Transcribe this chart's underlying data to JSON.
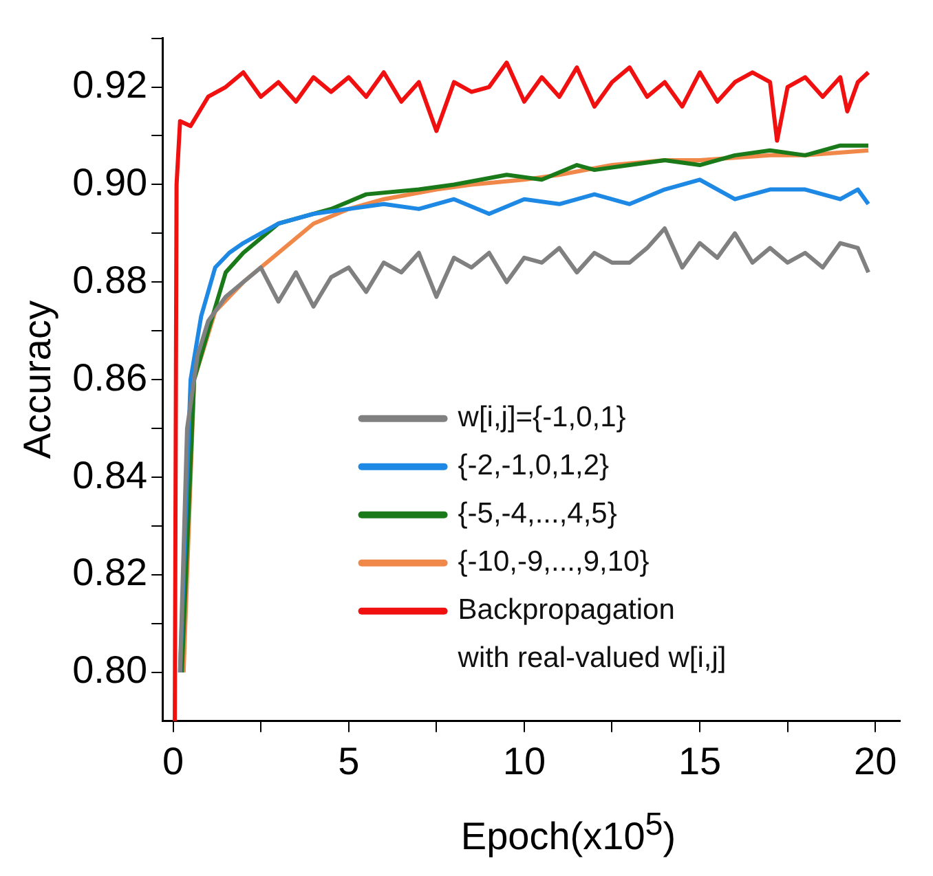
{
  "chart_data": {
    "type": "line",
    "xlabel": "Epoch(x10$^{5}$)",
    "ylabel": "Accuracy",
    "xlim": [
      -0.3,
      20.7
    ],
    "ylim": [
      0.79,
      0.93
    ],
    "xticks": [
      0,
      {
        "value": 2.5,
        "label": null
      },
      5,
      {
        "value": 7.5,
        "label": null
      },
      10,
      {
        "value": 12.5,
        "label": null
      },
      15,
      {
        "value": 17.5,
        "label": null
      },
      20
    ],
    "yticks": [
      {
        "value": 0.8,
        "label": "0.80"
      },
      {
        "value": 0.81,
        "label": null
      },
      0.82,
      {
        "value": 0.83,
        "label": null
      },
      0.84,
      {
        "value": 0.85,
        "label": null
      },
      0.86,
      {
        "value": 0.87,
        "label": null
      },
      0.88,
      {
        "value": 0.89,
        "label": null
      },
      {
        "value": 0.9,
        "label": "0.90"
      },
      {
        "value": 0.91,
        "label": null
      },
      0.92,
      {
        "value": 0.93,
        "label": null
      }
    ],
    "grid": false,
    "legend": "bottom right",
    "marker": "none",
    "line_style": "solid",
    "series": [
      {
        "name": "w[i,j]={-1,0,1}",
        "color": "#808080",
        "x": [
          0.2,
          0.4,
          0.7,
          1,
          1.5,
          2,
          2.5,
          3,
          3.5,
          4,
          4.5,
          5,
          5.5,
          6,
          6.5,
          7,
          7.5,
          8,
          8.5,
          9,
          9.5,
          10,
          10.5,
          11,
          11.5,
          12,
          12.5,
          13,
          13.5,
          14,
          14.5,
          15,
          15.5,
          16,
          16.5,
          17,
          17.5,
          18,
          18.5,
          19,
          19.5,
          19.8
        ],
        "values": [
          0.8,
          0.85,
          0.865,
          0.872,
          0.877,
          0.88,
          0.883,
          0.876,
          0.882,
          0.875,
          0.881,
          0.883,
          0.878,
          0.884,
          0.882,
          0.886,
          0.877,
          0.885,
          0.883,
          0.886,
          0.88,
          0.885,
          0.884,
          0.887,
          0.882,
          0.886,
          0.884,
          0.884,
          0.887,
          0.891,
          0.883,
          0.888,
          0.885,
          0.89,
          0.884,
          0.887,
          0.884,
          0.886,
          0.883,
          0.888,
          0.887,
          0.882
        ]
      },
      {
        "name": "{-2,-1,0,1,2}",
        "color": "#1e88e5",
        "x": [
          0.2,
          0.5,
          0.8,
          1.2,
          1.6,
          2,
          3,
          4,
          5,
          6,
          7,
          8,
          9,
          10,
          11,
          12,
          13,
          14,
          15,
          16,
          17,
          18,
          19,
          19.5,
          19.8
        ],
        "values": [
          0.8,
          0.86,
          0.873,
          0.883,
          0.886,
          0.888,
          0.892,
          0.894,
          0.895,
          0.896,
          0.895,
          0.897,
          0.894,
          0.897,
          0.896,
          0.898,
          0.896,
          0.899,
          0.901,
          0.897,
          0.899,
          0.899,
          0.897,
          0.899,
          0.896
        ]
      },
      {
        "name": "{-5,-4,...,4,5}",
        "color": "#1a7a1a",
        "x": [
          0.25,
          0.6,
          1,
          1.5,
          2,
          3,
          4.5,
          5.5,
          7,
          8,
          9.5,
          10.5,
          11.5,
          12,
          13,
          14,
          15,
          16,
          17,
          18,
          19,
          19.8
        ],
        "values": [
          0.8,
          0.86,
          0.87,
          0.882,
          0.886,
          0.892,
          0.895,
          0.898,
          0.899,
          0.9,
          0.902,
          0.901,
          0.904,
          0.903,
          0.904,
          0.905,
          0.904,
          0.906,
          0.907,
          0.906,
          0.908,
          0.908
        ]
      },
      {
        "name": "{-10,-9,...,9,10}",
        "color": "#f0884a",
        "x": [
          0.3,
          0.6,
          1.2,
          2,
          3,
          4,
          5,
          6,
          7.5,
          8.5,
          10,
          11,
          12.5,
          14,
          15,
          17,
          18,
          19.8
        ],
        "values": [
          0.8,
          0.86,
          0.874,
          0.88,
          0.886,
          0.892,
          0.895,
          0.897,
          0.899,
          0.9,
          0.901,
          0.902,
          0.904,
          0.905,
          0.905,
          0.906,
          0.906,
          0.907
        ]
      },
      {
        "name": "Backpropagation\nwith real-valued w[i,j]",
        "color": "#f01010",
        "x": [
          0.05,
          0.1,
          0.2,
          0.5,
          1,
          1.5,
          2,
          2.5,
          3,
          3.5,
          4,
          4.5,
          5,
          5.5,
          6,
          6.5,
          7,
          7.5,
          8,
          8.5,
          9,
          9.5,
          10,
          10.5,
          11,
          11.5,
          12,
          12.5,
          13,
          13.5,
          14,
          14.5,
          15,
          15.5,
          16,
          16.5,
          17,
          17.2,
          17.5,
          18,
          18.5,
          19,
          19.2,
          19.5,
          19.8
        ],
        "values": [
          0.79,
          0.9,
          0.913,
          0.912,
          0.918,
          0.92,
          0.923,
          0.918,
          0.921,
          0.917,
          0.922,
          0.919,
          0.922,
          0.918,
          0.923,
          0.917,
          0.921,
          0.911,
          0.921,
          0.919,
          0.92,
          0.925,
          0.917,
          0.922,
          0.918,
          0.924,
          0.916,
          0.921,
          0.924,
          0.918,
          0.921,
          0.916,
          0.923,
          0.917,
          0.921,
          0.923,
          0.921,
          0.909,
          0.92,
          0.922,
          0.918,
          0.922,
          0.915,
          0.921,
          0.923
        ]
      }
    ]
  }
}
